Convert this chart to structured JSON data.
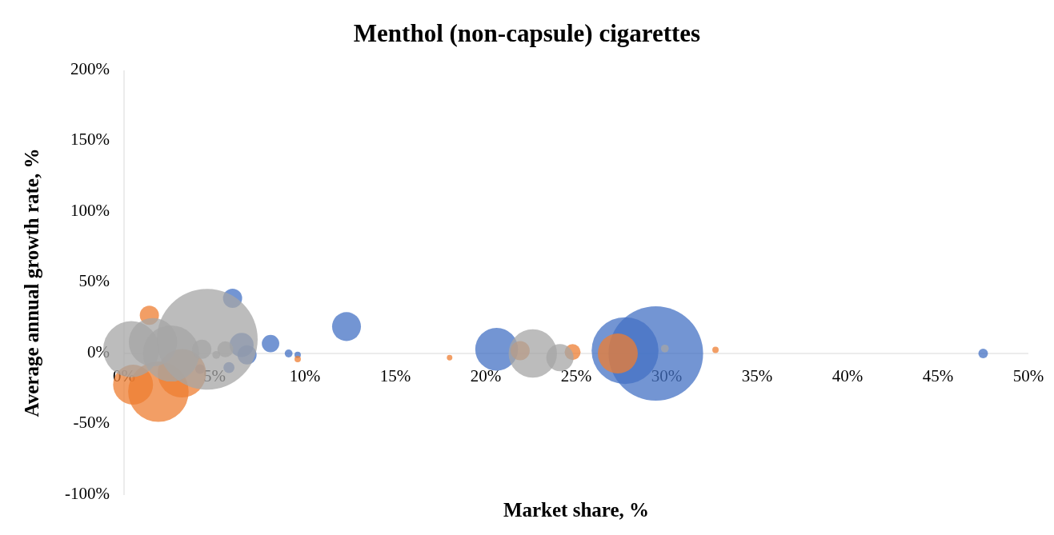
{
  "chart_data": {
    "type": "bubble",
    "title": "Menthol (non-capsule) cigarettes",
    "xlabel": "Market share, %",
    "ylabel": "Average annual growth rate, %",
    "relative": false,
    "xlim": [
      0,
      50
    ],
    "ylim": [
      -100,
      200
    ],
    "xticks": [
      {
        "value": 0,
        "label": "0%"
      },
      {
        "value": 5,
        "label": "5%"
      },
      {
        "value": 10,
        "label": "10%"
      },
      {
        "value": 15,
        "label": "15%"
      },
      {
        "value": 20,
        "label": "20%"
      },
      {
        "value": 25,
        "label": "25%"
      },
      {
        "value": 30,
        "label": "30%"
      },
      {
        "value": 35,
        "label": "35%"
      },
      {
        "value": 40,
        "label": "40%"
      },
      {
        "value": 45,
        "label": "45%"
      },
      {
        "value": 50,
        "label": "50%"
      }
    ],
    "yticks": [
      {
        "value": -100,
        "label": "-100%"
      },
      {
        "value": -50,
        "label": "-50%"
      },
      {
        "value": 0,
        "label": "0%"
      },
      {
        "value": 50,
        "label": "50%"
      },
      {
        "value": 100,
        "label": "100%"
      },
      {
        "value": 150,
        "label": "150%"
      },
      {
        "value": 200,
        "label": "200%"
      }
    ],
    "grid": false,
    "series": [
      {
        "color": "#4472c4",
        "x": [
          47.5,
          29.4,
          27.7,
          20.6,
          12.3,
          8.1,
          9.1,
          9.6,
          6.0,
          6.5,
          6.8,
          5.8,
          4.2
        ],
        "values": [
          0,
          0,
          2,
          3,
          19,
          7,
          0,
          -1,
          39,
          6,
          -1,
          -10,
          -11
        ],
        "sizes": [
          0.009,
          0.88,
          0.44,
          0.18,
          0.082,
          0.03,
          0.006,
          0.004,
          0.036,
          0.057,
          0.036,
          0.012,
          0.009
        ]
      },
      {
        "color": "#ed7d31",
        "x": [
          32.7,
          27.3,
          24.8,
          18,
          21.9,
          9.6,
          0.5,
          1.9,
          3.2,
          1.4
        ],
        "values": [
          2.5,
          0,
          1,
          -3,
          2,
          -4,
          -22,
          -27,
          -14,
          27
        ],
        "sizes": [
          0.004,
          0.157,
          0.025,
          0.003,
          0.036,
          0.004,
          0.157,
          0.36,
          0.23,
          0.036
        ]
      },
      {
        "color": "#a5a5a5",
        "x": [
          4.6,
          22.6,
          24.1,
          29.9,
          0.4,
          1.6,
          2.6,
          5.1,
          4.3,
          5.6
        ],
        "values": [
          10,
          0,
          -3,
          3.5,
          3,
          8,
          0,
          -1,
          3,
          3
        ],
        "sizes": [
          1,
          0.23,
          0.073,
          0.006,
          0.31,
          0.23,
          0.31,
          0.006,
          0.036,
          0.025
        ]
      }
    ]
  }
}
